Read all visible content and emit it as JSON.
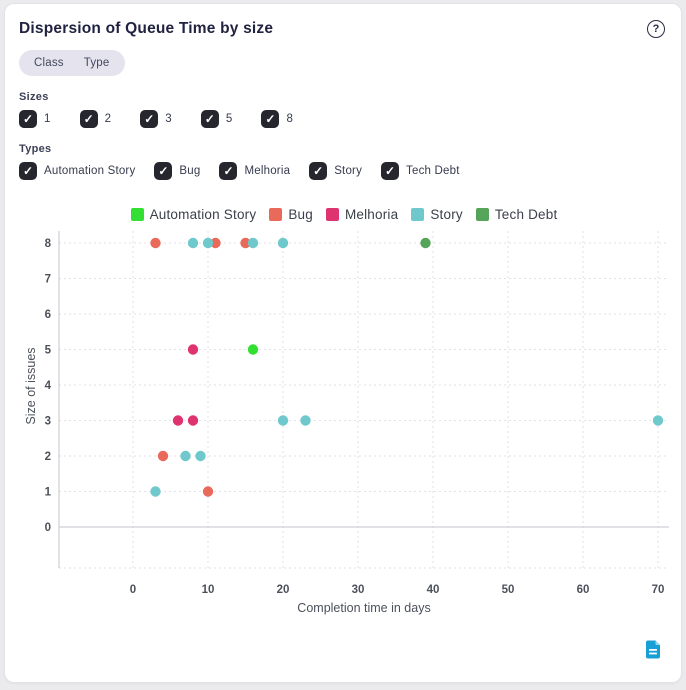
{
  "header": {
    "title": "Dispersion of Queue Time by size",
    "help_icon": "circled-question-mark"
  },
  "view_toggle": {
    "options": [
      {
        "label": "Class"
      },
      {
        "label": "Type"
      }
    ]
  },
  "filters": {
    "sizes": {
      "label": "Sizes",
      "items": [
        {
          "label": "1",
          "checked": true
        },
        {
          "label": "2",
          "checked": true
        },
        {
          "label": "3",
          "checked": true
        },
        {
          "label": "5",
          "checked": true
        },
        {
          "label": "8",
          "checked": true
        }
      ]
    },
    "types": {
      "label": "Types",
      "items": [
        {
          "label": "Automation Story",
          "checked": true
        },
        {
          "label": "Bug",
          "checked": true
        },
        {
          "label": "Melhoria",
          "checked": true
        },
        {
          "label": "Story",
          "checked": true
        },
        {
          "label": "Tech Debt",
          "checked": true
        }
      ]
    }
  },
  "chart_data": {
    "type": "scatter",
    "xlabel": "Completion time in days",
    "ylabel": "Size of issues",
    "x_ticks": [
      0,
      10,
      20,
      30,
      40,
      50,
      60,
      70
    ],
    "y_ticks": [
      0,
      1,
      2,
      3,
      4,
      5,
      6,
      7,
      8
    ],
    "xlim": [
      -10,
      71
    ],
    "ylim": [
      -1.1,
      8.3
    ],
    "grid": true,
    "legend_position": "top-center",
    "series": [
      {
        "name": "Automation Story",
        "color": "#33df33",
        "points": [
          [
            16,
            5
          ]
        ]
      },
      {
        "name": "Bug",
        "color": "#e96a5b",
        "points": [
          [
            3,
            8
          ],
          [
            11,
            8
          ],
          [
            15,
            8
          ],
          [
            4,
            2
          ],
          [
            10,
            1
          ]
        ]
      },
      {
        "name": "Melhoria",
        "color": "#df3370",
        "points": [
          [
            8,
            5
          ],
          [
            6,
            3
          ],
          [
            8,
            3
          ]
        ]
      },
      {
        "name": "Story",
        "color": "#6fc9cc",
        "points": [
          [
            8,
            8
          ],
          [
            10,
            8
          ],
          [
            16,
            8
          ],
          [
            20,
            8
          ],
          [
            20,
            3
          ],
          [
            23,
            3
          ],
          [
            70,
            3
          ],
          [
            7,
            2
          ],
          [
            9,
            2
          ],
          [
            3,
            1
          ]
        ]
      },
      {
        "name": "Tech Debt",
        "color": "#56a35a",
        "points": [
          [
            39,
            8
          ]
        ]
      }
    ],
    "colors": {
      "grid": "#e2e2e6",
      "axis_line": "#c6c6cc",
      "tick_text": "#4b505a"
    }
  },
  "footer": {
    "export_icon": "document-report"
  }
}
